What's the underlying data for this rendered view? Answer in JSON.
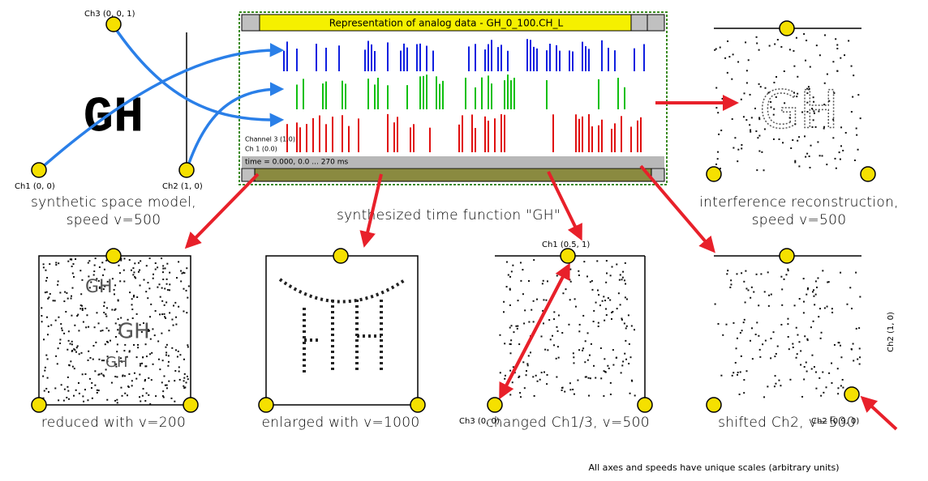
{
  "space_model": {
    "ch3_label": "Ch3 (0, 0, 1)",
    "ch1_label": "Ch1 (0, 0)",
    "ch2_label": "Ch2 (1, 0)",
    "glyph": "GH",
    "caption": [
      "synthetic space model,",
      "speed v=500"
    ]
  },
  "window": {
    "title": "Representation of analog data - GH_0_100.CH_L",
    "row_labels": [
      "Channel 3 (1.0)",
      "Ch 1 (0.0)"
    ],
    "status": "time = 0.000, 0.0 ... 270 ms"
  },
  "time_function_caption": "synthesized time function \"GH\"",
  "reconstruction": {
    "glyph": "GH",
    "caption": [
      "interference reconstruction,",
      "speed v=500"
    ]
  },
  "panels": [
    {
      "caption": "reduced with v=200",
      "glyphs": [
        "GH",
        "GH",
        "GH"
      ]
    },
    {
      "caption": "enlarged with v=1000"
    },
    {
      "caption": "changed Ch1/3, v=500",
      "top_label": "Ch1 (0.5, 1)",
      "left_label": "Ch3 (0, 0)"
    },
    {
      "caption": "shifted Ch2, v=500",
      "bottom_label": "Ch2 (0.9, 0)",
      "side_label": "Ch2 (1, 0)"
    }
  ],
  "footnote": "All axes and speeds have unique scales (arbitrary units)"
}
